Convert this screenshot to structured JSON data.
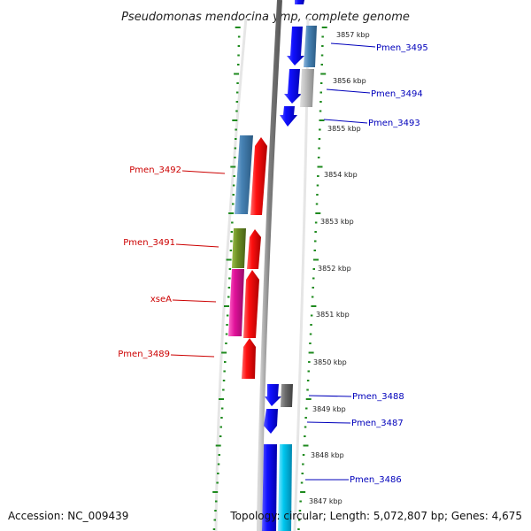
{
  "title": "Pseudomonas mendocina ymp, complete genome",
  "footer": {
    "accession": "Accession: NC_009439",
    "topology": "Topology: circular; Length: 5,072,807 bp; Genes: 4,675"
  },
  "ticks": [
    {
      "label": "3857 kbp"
    },
    {
      "label": "3856 kbp"
    },
    {
      "label": "3855 kbp"
    },
    {
      "label": "3854 kbp"
    },
    {
      "label": "3853 kbp"
    },
    {
      "label": "3852 kbp"
    },
    {
      "label": "3851 kbp"
    },
    {
      "label": "3850 kbp"
    },
    {
      "label": "3849 kbp"
    },
    {
      "label": "3848 kbp"
    },
    {
      "label": "3847 kbp"
    }
  ],
  "gene_labels": {
    "right": [
      "Pmen_3495",
      "Pmen_3494",
      "Pmen_3493",
      "Pmen_3488",
      "Pmen_3487",
      "Pmen_3486"
    ],
    "left": [
      "Pmen_3492",
      "Pmen_3491",
      "xseA",
      "Pmen_3489"
    ]
  },
  "colors": {
    "forward_strand": "#ff0000",
    "reverse_strand": "#0000ee",
    "right_label": "#0000bb",
    "left_label": "#cc0000",
    "steelblue": "#4682b4",
    "olive": "#6b8e23",
    "magenta": "#e0119a",
    "cyan": "#00c8f0",
    "gray": "#999999",
    "backbone": "#7f7f7f",
    "dots": "#1e8a1e"
  }
}
